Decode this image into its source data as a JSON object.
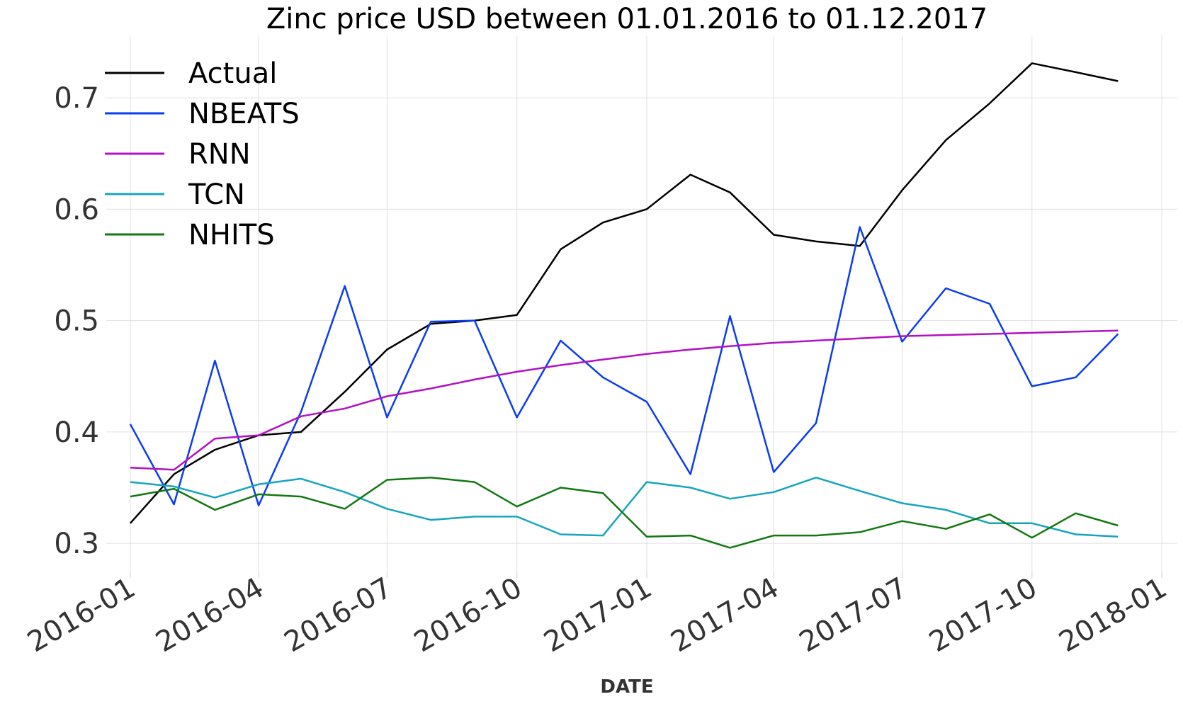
{
  "chart_data": {
    "type": "line",
    "title": "Zinc price USD between 01.01.2016 to 01.12.2017",
    "xlabel": "DATE",
    "ylabel": "",
    "x": [
      "2016-01-01",
      "2016-02-01",
      "2016-03-01",
      "2016-04-01",
      "2016-05-01",
      "2016-06-01",
      "2016-07-01",
      "2016-08-01",
      "2016-09-01",
      "2016-10-01",
      "2016-11-01",
      "2016-12-01",
      "2017-01-01",
      "2017-02-01",
      "2017-03-01",
      "2017-04-01",
      "2017-05-01",
      "2017-06-01",
      "2017-07-01",
      "2017-08-01",
      "2017-09-01",
      "2017-10-01",
      "2017-11-01",
      "2017-12-01"
    ],
    "xlim": [
      "2015-12-15",
      "2018-01-12"
    ],
    "ylim": [
      0.274,
      0.756
    ],
    "x_ticks": [
      "2016-01",
      "2016-04",
      "2016-07",
      "2016-10",
      "2017-01",
      "2017-04",
      "2017-07",
      "2017-10",
      "2018-01"
    ],
    "y_ticks": [
      0.3,
      0.4,
      0.5,
      0.6,
      0.7
    ],
    "y_tick_labels": [
      "0.3",
      "0.4",
      "0.5",
      "0.6",
      "0.7"
    ],
    "grid": true,
    "legend_position": "top-left",
    "series": [
      {
        "name": "Actual",
        "color": "#000000",
        "values": [
          0.318,
          0.362,
          0.384,
          0.397,
          0.4,
          0.436,
          0.474,
          0.497,
          0.5,
          0.505,
          0.564,
          0.588,
          0.6,
          0.631,
          0.615,
          0.577,
          0.571,
          0.567,
          0.617,
          0.662,
          0.695,
          0.731,
          0.723,
          0.715
        ]
      },
      {
        "name": "NBEATS",
        "color": "#0a3cf0",
        "values": [
          0.407,
          0.335,
          0.464,
          0.334,
          0.418,
          0.531,
          0.413,
          0.499,
          0.5,
          0.413,
          0.482,
          0.449,
          0.427,
          0.362,
          0.504,
          0.364,
          0.408,
          0.584,
          0.481,
          0.529,
          0.515,
          0.441,
          0.449,
          0.488
        ]
      },
      {
        "name": "RNN",
        "color": "#b410c4",
        "values": [
          0.368,
          0.366,
          0.394,
          0.397,
          0.414,
          0.421,
          0.432,
          0.439,
          0.447,
          0.454,
          0.46,
          0.465,
          0.47,
          0.474,
          0.477,
          0.48,
          0.482,
          0.484,
          0.486,
          0.487,
          0.488,
          0.489,
          0.49,
          0.491
        ]
      },
      {
        "name": "TCN",
        "color": "#16a5bd",
        "values": [
          0.355,
          0.351,
          0.341,
          0.353,
          0.358,
          0.346,
          0.331,
          0.321,
          0.324,
          0.324,
          0.308,
          0.307,
          0.355,
          0.35,
          0.34,
          0.346,
          0.359,
          0.347,
          0.336,
          0.33,
          0.318,
          0.318,
          0.308,
          0.306
        ]
      },
      {
        "name": "NHITS",
        "color": "#127812",
        "values": [
          0.342,
          0.349,
          0.33,
          0.344,
          0.342,
          0.331,
          0.357,
          0.359,
          0.355,
          0.333,
          0.35,
          0.345,
          0.306,
          0.307,
          0.296,
          0.307,
          0.307,
          0.31,
          0.32,
          0.313,
          0.326,
          0.305,
          0.327,
          0.316
        ]
      }
    ]
  }
}
